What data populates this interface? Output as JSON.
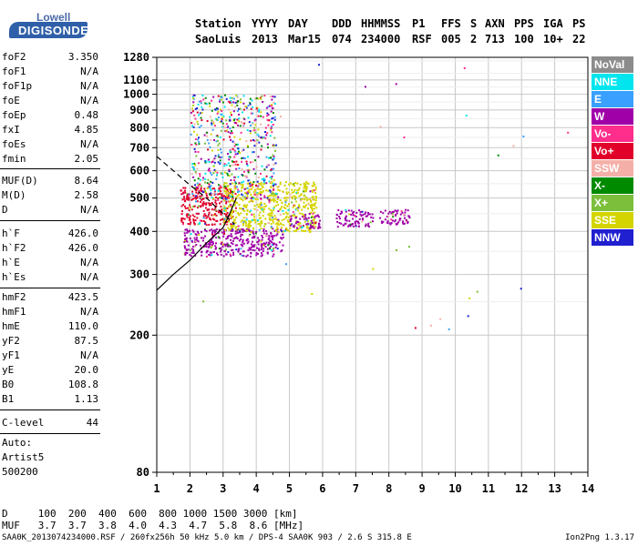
{
  "logo": {
    "top": "Lowell",
    "bottom": "DIGISONDE"
  },
  "header": {
    "row1": [
      {
        "id": "station",
        "text": "Station"
      },
      {
        "id": "yyyy",
        "text": "YYYY"
      },
      {
        "id": "day",
        "text": "DAY"
      },
      {
        "id": "ddd",
        "text": "DDD"
      },
      {
        "id": "hhmmss",
        "text": "HHMMSS"
      },
      {
        "id": "p1",
        "text": "P1"
      },
      {
        "id": "ffs",
        "text": "FFS"
      },
      {
        "id": "s",
        "text": "S"
      },
      {
        "id": "axn",
        "text": "AXN"
      },
      {
        "id": "pps",
        "text": "PPS"
      },
      {
        "id": "iga",
        "text": "IGA"
      },
      {
        "id": "ps",
        "text": "PS"
      }
    ],
    "row2": [
      {
        "id": "station",
        "text": "SaoLuis"
      },
      {
        "id": "yyyy",
        "text": "2013"
      },
      {
        "id": "day",
        "text": "Mar15"
      },
      {
        "id": "ddd",
        "text": "074"
      },
      {
        "id": "hhmmss",
        "text": "234000"
      },
      {
        "id": "p1",
        "text": "RSF"
      },
      {
        "id": "ffs",
        "text": "005"
      },
      {
        "id": "s",
        "text": "2"
      },
      {
        "id": "axn",
        "text": "713"
      },
      {
        "id": "pps",
        "text": "100"
      },
      {
        "id": "iga",
        "text": "10+"
      },
      {
        "id": "ps",
        "text": "22"
      }
    ]
  },
  "params": {
    "group1": [
      {
        "k": "foF2",
        "v": "3.350"
      },
      {
        "k": "foF1",
        "v": "N/A"
      },
      {
        "k": "foF1p",
        "v": "N/A"
      },
      {
        "k": "foE",
        "v": "N/A"
      },
      {
        "k": "foEp",
        "v": "0.48"
      },
      {
        "k": "fxI",
        "v": "4.85"
      },
      {
        "k": "foEs",
        "v": "N/A"
      },
      {
        "k": "fmin",
        "v": "2.05"
      }
    ],
    "group2": [
      {
        "k": "MUF(D)",
        "v": "8.64"
      },
      {
        "k": "M(D)",
        "v": "2.58"
      },
      {
        "k": "D",
        "v": "N/A"
      }
    ],
    "group3": [
      {
        "k": "h`F",
        "v": "426.0"
      },
      {
        "k": "h`F2",
        "v": "426.0"
      },
      {
        "k": "h`E",
        "v": "N/A"
      },
      {
        "k": "h`Es",
        "v": "N/A"
      }
    ],
    "group4": [
      {
        "k": "hmF2",
        "v": "423.5"
      },
      {
        "k": "hmF1",
        "v": "N/A"
      },
      {
        "k": "hmE",
        "v": "110.0"
      },
      {
        "k": "yF2",
        "v": "87.5"
      },
      {
        "k": "yF1",
        "v": "N/A"
      },
      {
        "k": "yE",
        "v": "20.0"
      },
      {
        "k": "B0",
        "v": "108.8"
      },
      {
        "k": "B1",
        "v": "1.13"
      }
    ],
    "group5": [
      {
        "k": "C-level",
        "v": "44"
      }
    ]
  },
  "auto": {
    "line1": "Auto:",
    "line2": "Artist5",
    "line3": "500200"
  },
  "legend": [
    {
      "label": "NoVal",
      "color": "#8c8c8c"
    },
    {
      "label": "NNE",
      "color": "#00e5ee"
    },
    {
      "label": "E",
      "color": "#3aa0ff"
    },
    {
      "label": "W",
      "color": "#a000a8"
    },
    {
      "label": "Vo-",
      "color": "#ff2d8c"
    },
    {
      "label": "Vo+",
      "color": "#e0002a"
    },
    {
      "label": "SSW",
      "color": "#f4b0a8"
    },
    {
      "label": "X-",
      "color": "#008a00"
    },
    {
      "label": "X+",
      "color": "#7bbf3a"
    },
    {
      "label": "SSE",
      "color": "#d4d400"
    },
    {
      "label": "NNW",
      "color": "#2020d0"
    }
  ],
  "bottom": {
    "row1": "D     100  200  400  600  800 1000 1500 3000 [km]",
    "row2": "MUF   3.7  3.7  3.8  4.0  4.3  4.7  5.8  8.6 [MHz]"
  },
  "footer": {
    "left": "SAA0K_2013074234000.RSF / 260fx256h 50 kHz 5.0 km / DPS-4 SAA0K 903 / 2.6 S 315.8 E",
    "right": "Ion2Png 1.3.17"
  },
  "chart_data": {
    "type": "scatter",
    "title": "",
    "xlabel": "",
    "ylabel": "",
    "xlim": [
      1,
      14
    ],
    "ylim": [
      80,
      1280
    ],
    "y_scale": "log",
    "x_ticks": [
      1,
      2,
      3,
      4,
      5,
      6,
      7,
      8,
      9,
      10,
      11,
      12,
      13,
      14
    ],
    "y_ticks": [
      80,
      200,
      300,
      400,
      500,
      600,
      700,
      800,
      900,
      1000,
      1100,
      1280
    ],
    "grid": true,
    "echo_clusters": [
      {
        "name": "W",
        "color": "#a000a8",
        "x_range": [
          1.8,
          4.8
        ],
        "y_range": [
          340,
          410
        ]
      },
      {
        "name": "Vo+",
        "color": "#e0002a",
        "x_range": [
          1.7,
          3.3
        ],
        "y_range": [
          420,
          540
        ]
      },
      {
        "name": "SSE",
        "color": "#d4d400",
        "x_range": [
          3.0,
          5.8
        ],
        "y_range": [
          400,
          560
        ]
      },
      {
        "name": "W",
        "color": "#a000a8",
        "x_range": [
          5.0,
          5.9
        ],
        "y_range": [
          410,
          450
        ]
      },
      {
        "name": "W",
        "color": "#a000a8",
        "x_range": [
          6.4,
          7.5
        ],
        "y_range": [
          415,
          465
        ]
      },
      {
        "name": "W",
        "color": "#a000a8",
        "x_range": [
          7.7,
          8.6
        ],
        "y_range": [
          420,
          465
        ]
      },
      {
        "name": "mixed",
        "color": "#ff2d8c",
        "x_range": [
          2.0,
          4.6
        ],
        "y_range": [
          500,
          1000
        ]
      }
    ],
    "traces": [
      {
        "name": "virtual-height-trace",
        "style": "solid",
        "x": [
          1.0,
          1.5,
          2.0,
          2.5,
          3.0,
          3.2,
          3.4
        ],
        "y": [
          270,
          300,
          330,
          370,
          410,
          450,
          500
        ]
      },
      {
        "name": "profile-trace",
        "style": "dashed",
        "x": [
          1.0,
          1.5,
          2.0,
          2.5,
          3.0,
          3.35
        ],
        "y": [
          660,
          600,
          545,
          500,
          450,
          420
        ]
      }
    ]
  }
}
